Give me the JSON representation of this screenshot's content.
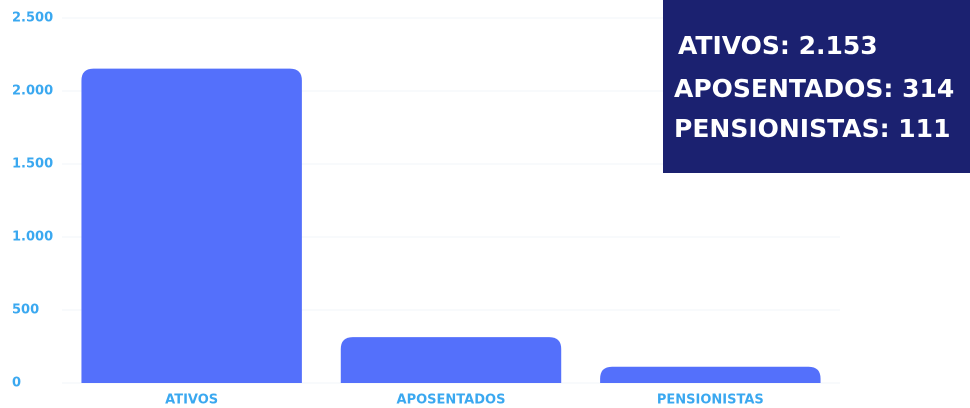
{
  "chart_data": {
    "type": "bar",
    "categories": [
      "ATIVOS",
      "APOSENTADOS",
      "PENSIONISTAS"
    ],
    "values": [
      2153,
      314,
      111
    ],
    "color": "#5470fb",
    "ylim": [
      0,
      2500
    ],
    "yticks": [
      0,
      500,
      {
        "value": 1000,
        "label": "1.000"
      },
      {
        "value": 1500,
        "label": "1.500"
      },
      {
        "value": 2000,
        "label": "2.000"
      },
      {
        "value": 2500,
        "label": "2.500"
      }
    ],
    "grid": true,
    "annotations": [
      "ATIVOS: 2.153",
      "APOSENTADOS: 314",
      "PENSIONISTAS: 111"
    ]
  }
}
